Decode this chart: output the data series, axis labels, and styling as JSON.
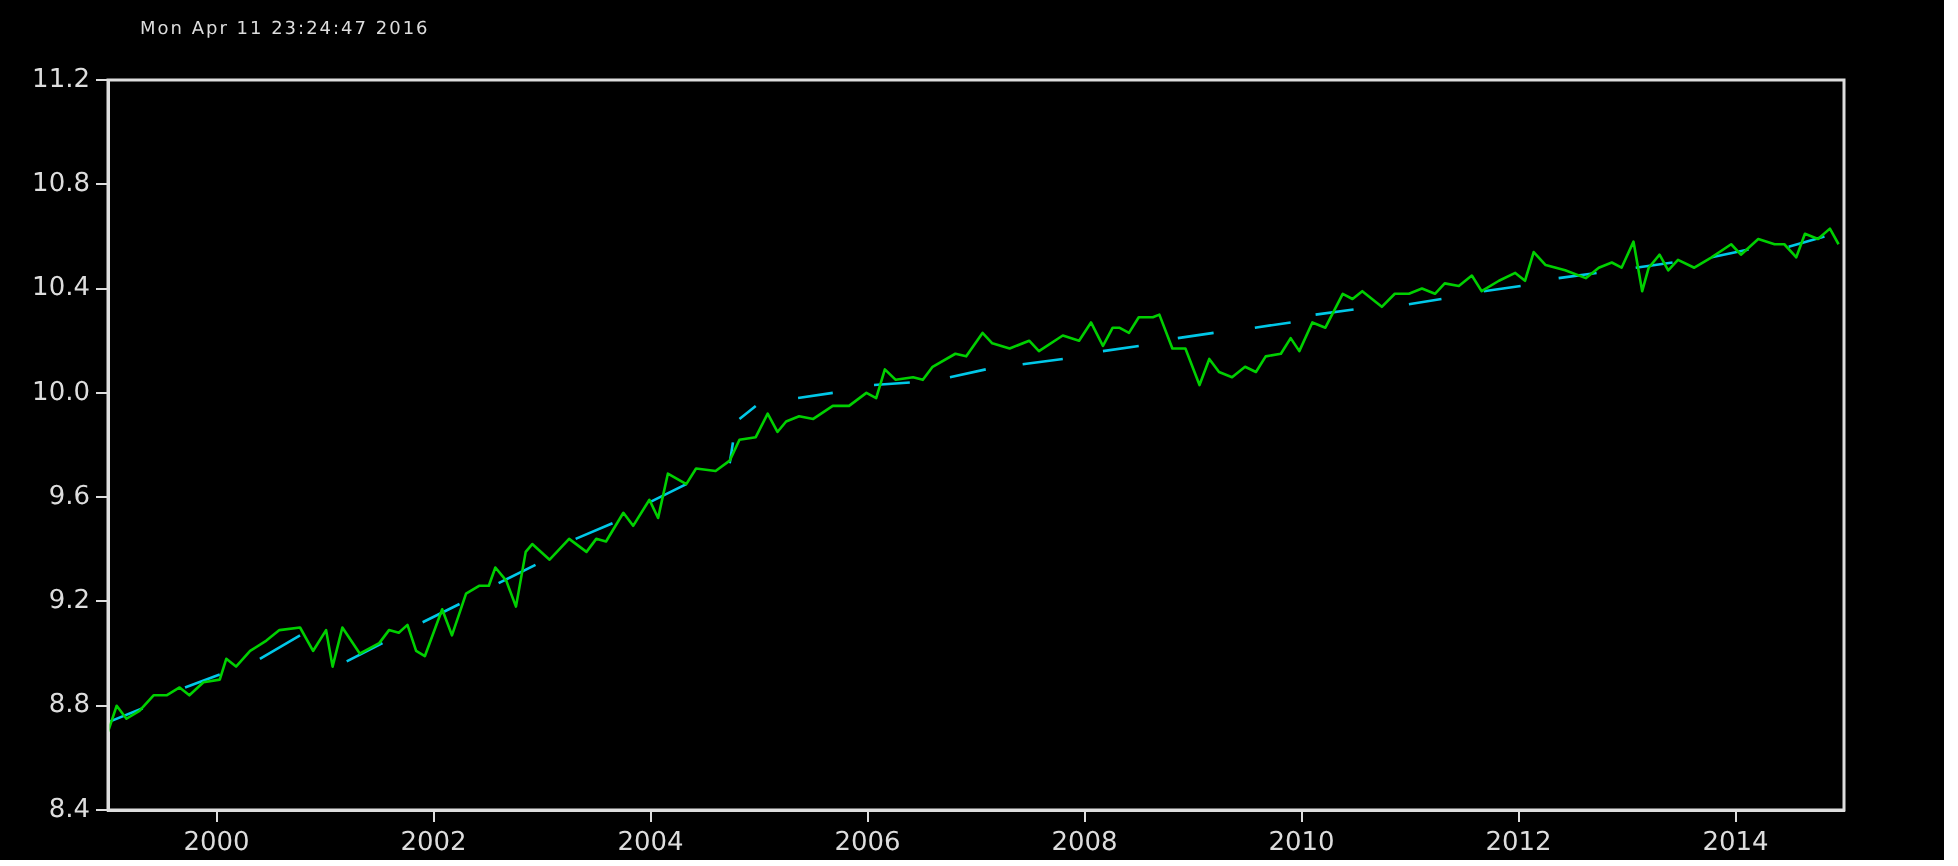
{
  "chart_data": {
    "type": "line",
    "annotations": [
      "Mon Apr 11 23:24:47 2016"
    ],
    "xlim": [
      1999,
      2015
    ],
    "xticks": [
      2000,
      2002,
      2004,
      2006,
      2008,
      2010,
      2012,
      2014
    ],
    "ylim": [
      8.4,
      11.2
    ],
    "yticks": [
      {
        "value": 8.4,
        "label": "8.4"
      },
      {
        "value": 8.8,
        "label": "8.8"
      },
      {
        "value": 9.2,
        "label": "9.2"
      },
      {
        "value": 9.6,
        "label": "9.6"
      },
      {
        "value": 10,
        "label": "10.0"
      },
      {
        "value": 10.4,
        "label": "10.4"
      },
      {
        "value": 10.8,
        "label": "10.8"
      },
      {
        "value": 11.2,
        "label": "11.2"
      }
    ],
    "grid": false,
    "legend": false,
    "marker": "none",
    "series": [
      {
        "color": "#00d000",
        "x": [
          1999.0,
          1999.08,
          1999.17,
          1999.29,
          1999.42,
          1999.54,
          1999.66,
          1999.75,
          1999.88,
          2000.03,
          2000.09,
          2000.18,
          2000.31,
          2000.46,
          2000.58,
          2000.77,
          2000.89,
          2001.01,
          2001.07,
          2001.16,
          2001.32,
          2001.5,
          2001.59,
          2001.68,
          2001.76,
          2001.84,
          2001.92,
          2002.08,
          2002.17,
          2002.3,
          2002.42,
          2002.51,
          2002.57,
          2002.67,
          2002.76,
          2002.85,
          2002.91,
          2003.07,
          2003.25,
          2003.41,
          2003.5,
          2003.59,
          2003.75,
          2003.84,
          2003.99,
          2004.07,
          2004.16,
          2004.33,
          2004.42,
          2004.6,
          2004.73,
          2004.82,
          2004.97,
          2005.08,
          2005.17,
          2005.25,
          2005.37,
          2005.5,
          2005.68,
          2005.83,
          2005.99,
          2006.08,
          2006.16,
          2006.26,
          2006.42,
          2006.51,
          2006.6,
          2006.81,
          2006.91,
          2007.06,
          2007.15,
          2007.31,
          2007.49,
          2007.58,
          2007.8,
          2007.95,
          2008.06,
          2008.17,
          2008.26,
          2008.32,
          2008.41,
          2008.5,
          2008.63,
          2008.69,
          2008.81,
          2008.93,
          2009.06,
          2009.15,
          2009.24,
          2009.36,
          2009.48,
          2009.58,
          2009.67,
          2009.81,
          2009.9,
          2009.98,
          2010.1,
          2010.22,
          2010.38,
          2010.47,
          2010.56,
          2010.74,
          2010.86,
          2010.99,
          2011.11,
          2011.23,
          2011.32,
          2011.45,
          2011.57,
          2011.66,
          2011.82,
          2011.97,
          2012.06,
          2012.14,
          2012.25,
          2012.43,
          2012.62,
          2012.74,
          2012.86,
          2012.95,
          2013.06,
          2013.14,
          2013.2,
          2013.3,
          2013.38,
          2013.47,
          2013.62,
          2013.78,
          2013.96,
          2014.05,
          2014.21,
          2014.36,
          2014.45,
          2014.56,
          2014.64,
          2014.76,
          2014.87,
          2014.95
        ],
        "values": [
          8.7,
          8.8,
          8.75,
          8.78,
          8.84,
          8.84,
          8.87,
          8.84,
          8.89,
          8.9,
          8.98,
          8.95,
          9.01,
          9.05,
          9.09,
          9.1,
          9.01,
          9.09,
          8.95,
          9.1,
          9.0,
          9.04,
          9.09,
          9.08,
          9.11,
          9.01,
          8.99,
          9.17,
          9.07,
          9.23,
          9.26,
          9.26,
          9.33,
          9.28,
          9.18,
          9.39,
          9.42,
          9.36,
          9.44,
          9.39,
          9.44,
          9.43,
          9.54,
          9.49,
          9.59,
          9.52,
          9.69,
          9.65,
          9.71,
          9.7,
          9.74,
          9.82,
          9.83,
          9.92,
          9.85,
          9.89,
          9.91,
          9.9,
          9.95,
          9.95,
          10.0,
          9.98,
          10.09,
          10.05,
          10.06,
          10.05,
          10.1,
          10.15,
          10.14,
          10.23,
          10.19,
          10.17,
          10.2,
          10.16,
          10.22,
          10.2,
          10.27,
          10.18,
          10.25,
          10.25,
          10.23,
          10.29,
          10.29,
          10.3,
          10.17,
          10.17,
          10.03,
          10.13,
          10.08,
          10.06,
          10.1,
          10.08,
          10.14,
          10.15,
          10.21,
          10.16,
          10.27,
          10.25,
          10.38,
          10.36,
          10.39,
          10.33,
          10.38,
          10.38,
          10.4,
          10.38,
          10.42,
          10.41,
          10.45,
          10.39,
          10.43,
          10.46,
          10.43,
          10.54,
          10.49,
          10.47,
          10.44,
          10.48,
          10.5,
          10.48,
          10.58,
          10.39,
          10.48,
          10.53,
          10.47,
          10.51,
          10.48,
          10.52,
          10.57,
          10.53,
          10.59,
          10.57,
          10.57,
          10.52,
          10.61,
          10.59,
          10.63,
          10.57
        ]
      },
      {
        "color": "#00c8e8",
        "x": [
          1999.02,
          1999.32,
          1999.5,
          1999.71,
          2000.03,
          2000.2,
          2000.4,
          2000.77,
          2001.0,
          2001.2,
          2001.53,
          2001.7,
          2001.9,
          2002.24,
          2002.4,
          2002.6,
          2002.94,
          2003.1,
          2003.31,
          2003.65,
          2003.8,
          2003.99,
          2004.33,
          2004.5,
          2004.73,
          2004.76,
          2004.79,
          2004.82,
          2004.97,
          2005.2,
          2005.36,
          2005.68,
          2005.9,
          2006.06,
          2006.39,
          2006.6,
          2006.76,
          2007.09,
          2007.3,
          2007.43,
          2007.8,
          2008.0,
          2008.17,
          2008.5,
          2008.7,
          2008.86,
          2009.19,
          2009.4,
          2009.57,
          2009.9,
          2010.0,
          2010.13,
          2010.48,
          2010.7,
          2010.99,
          2011.29,
          2011.5,
          2011.68,
          2012.02,
          2012.2,
          2012.37,
          2012.72,
          2012.9,
          2013.08,
          2013.42,
          2013.6,
          2013.78,
          2014.12,
          2014.3,
          2014.49,
          2014.82
        ],
        "values": [
          8.74,
          8.79,
          null,
          8.87,
          8.92,
          null,
          8.98,
          9.07,
          null,
          8.97,
          9.04,
          null,
          9.12,
          9.19,
          null,
          9.27,
          9.34,
          null,
          9.44,
          9.5,
          null,
          9.58,
          9.65,
          null,
          9.73,
          9.81,
          null,
          9.9,
          9.95,
          null,
          9.98,
          10.0,
          null,
          10.03,
          10.04,
          null,
          10.06,
          10.09,
          null,
          10.11,
          10.13,
          null,
          10.16,
          10.18,
          null,
          10.21,
          10.23,
          null,
          10.25,
          10.27,
          null,
          10.3,
          10.32,
          null,
          10.34,
          10.36,
          null,
          10.39,
          10.41,
          null,
          10.44,
          10.46,
          null,
          10.48,
          10.5,
          null,
          10.52,
          10.55,
          null,
          10.56,
          10.6
        ]
      }
    ]
  }
}
